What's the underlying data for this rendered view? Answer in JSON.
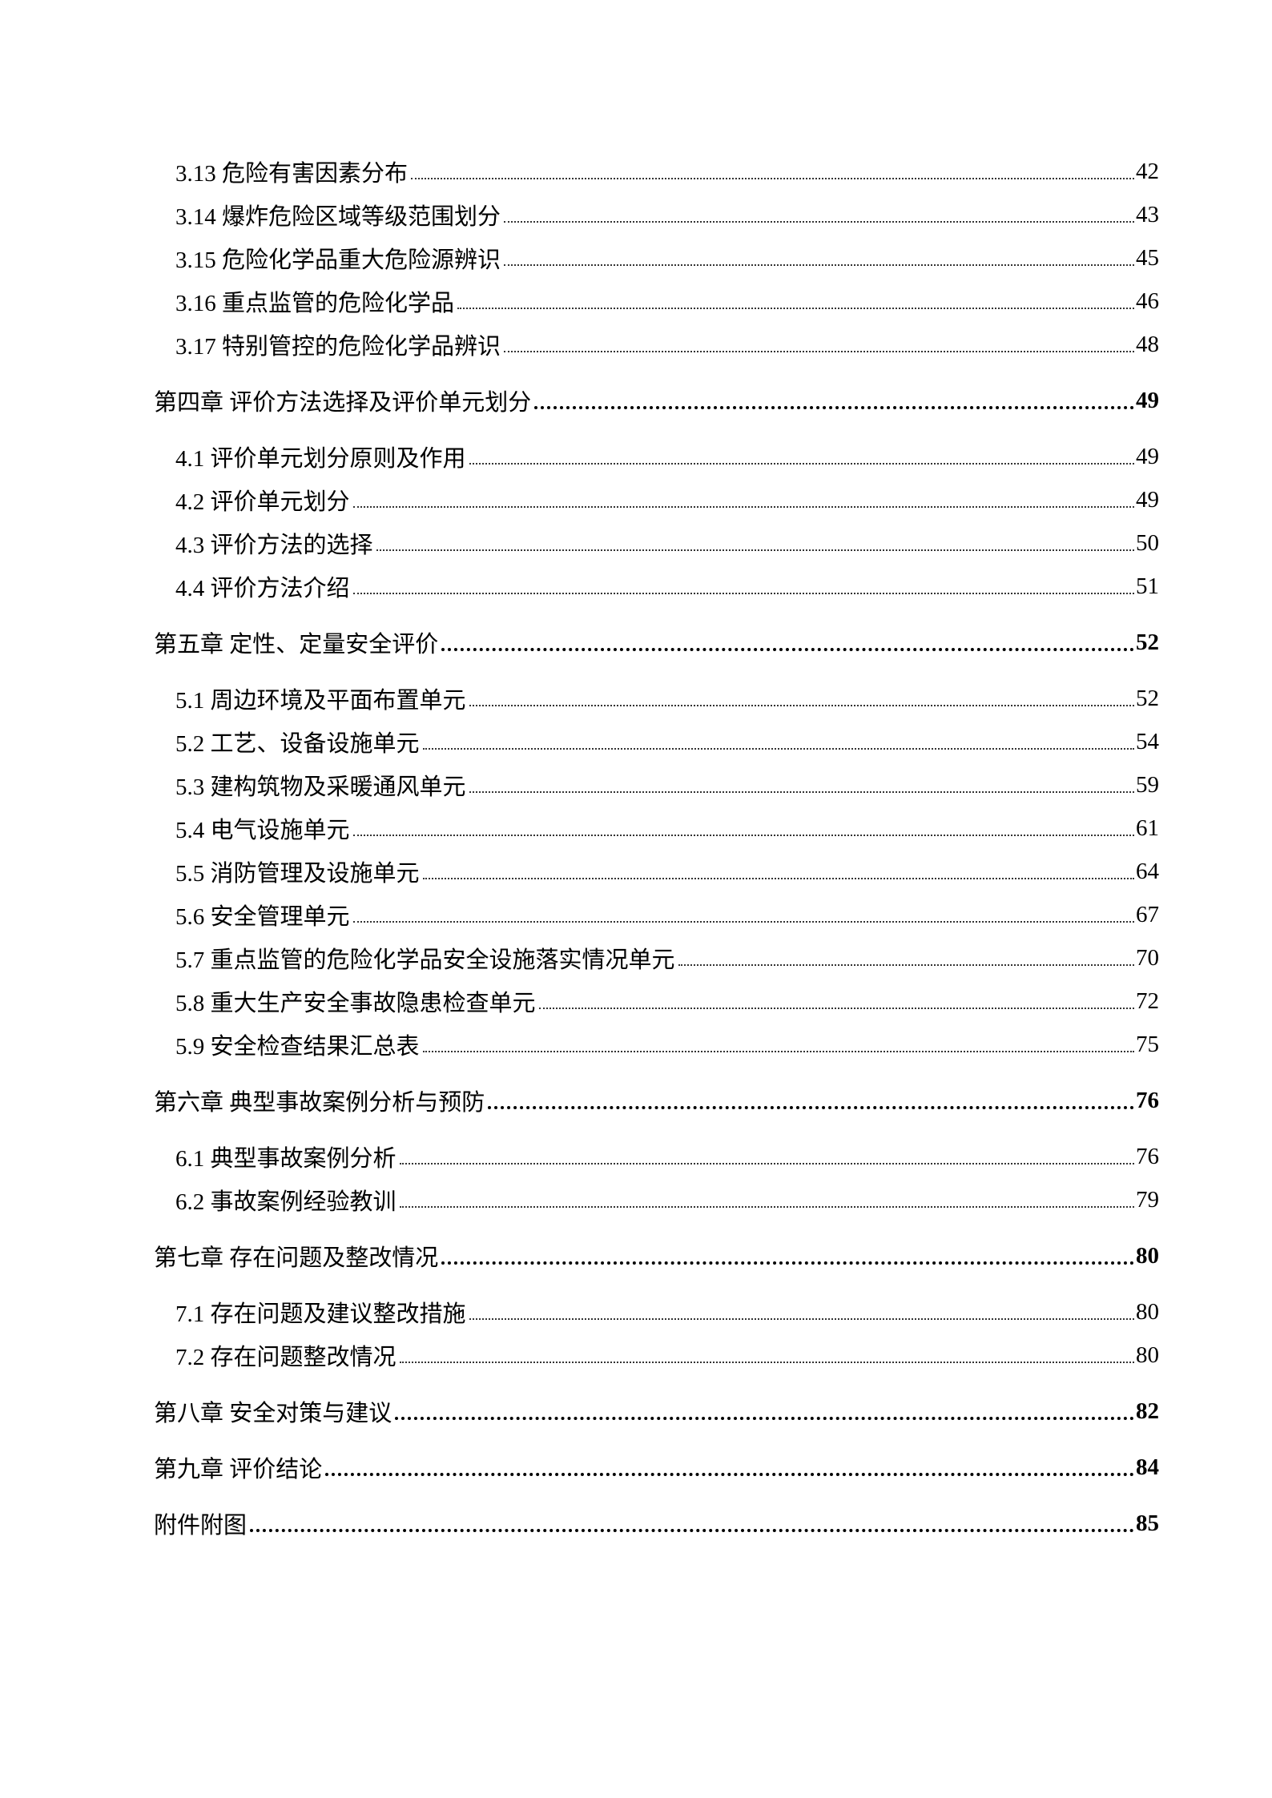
{
  "toc": [
    {
      "level": "section",
      "title": "3.13 危险有害因素分布",
      "page": "42"
    },
    {
      "level": "section",
      "title": "3.14 爆炸危险区域等级范围划分",
      "page": "43"
    },
    {
      "level": "section",
      "title": "3.15 危险化学品重大危险源辨识",
      "page": "45"
    },
    {
      "level": "section",
      "title": "3.16 重点监管的危险化学品",
      "page": "46"
    },
    {
      "level": "section",
      "title": "3.17 特别管控的危险化学品辨识",
      "page": "48"
    },
    {
      "level": "chapter",
      "title": "第四章 评价方法选择及评价单元划分",
      "page": "49"
    },
    {
      "level": "section",
      "title": "4.1  评价单元划分原则及作用",
      "page": "49"
    },
    {
      "level": "section",
      "title": "4.2 评价单元划分",
      "page": "49"
    },
    {
      "level": "section",
      "title": "4.3 评价方法的选择",
      "page": "50"
    },
    {
      "level": "section",
      "title": "4.4 评价方法介绍",
      "page": "51"
    },
    {
      "level": "chapter",
      "title": "第五章 定性、定量安全评价",
      "page": "52"
    },
    {
      "level": "section",
      "title": "5.1 周边环境及平面布置单元",
      "page": "52"
    },
    {
      "level": "section",
      "title": "5.2 工艺、设备设施单元",
      "page": "54"
    },
    {
      "level": "section",
      "title": "5.3 建构筑物及采暖通风单元",
      "page": "59"
    },
    {
      "level": "section",
      "title": "5.4 电气设施单元",
      "page": "61"
    },
    {
      "level": "section",
      "title": "5.5 消防管理及设施单元",
      "page": "64"
    },
    {
      "level": "section",
      "title": "5.6 安全管理单元",
      "page": "67"
    },
    {
      "level": "section",
      "title": "5.7 重点监管的危险化学品安全设施落实情况单元",
      "page": "70"
    },
    {
      "level": "section",
      "title": "5.8 重大生产安全事故隐患检查单元",
      "page": "72"
    },
    {
      "level": "section",
      "title": "5.9 安全检查结果汇总表",
      "page": "75"
    },
    {
      "level": "chapter",
      "title": "第六章 典型事故案例分析与预防",
      "page": "76"
    },
    {
      "level": "section",
      "title": "6.1 典型事故案例分析",
      "page": "76"
    },
    {
      "level": "section",
      "title": "6.2 事故案例经验教训",
      "page": "79"
    },
    {
      "level": "chapter",
      "title": "第七章 存在问题及整改情况",
      "page": "80"
    },
    {
      "level": "section",
      "title": "7.1 存在问题及建议整改措施",
      "page": "80"
    },
    {
      "level": "section",
      "title": "7.2 存在问题整改情况",
      "page": "80"
    },
    {
      "level": "chapter",
      "title": "第八章 安全对策与建议",
      "page": "82"
    },
    {
      "level": "chapter",
      "title": "第九章 评价结论",
      "page": "84"
    },
    {
      "level": "chapter",
      "title": "附件附图",
      "page": "85"
    }
  ]
}
